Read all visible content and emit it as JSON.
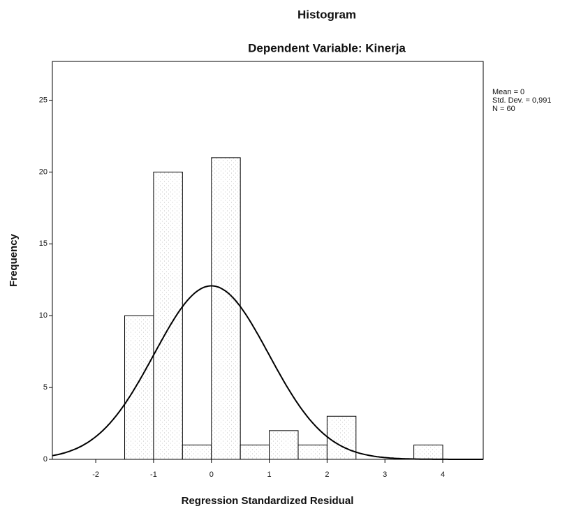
{
  "chart_data": {
    "type": "histogram",
    "title": "Histogram",
    "subtitle": "Dependent Variable: Kinerja",
    "x_label": "Regression Standardized Residual",
    "y_label": "Frequency",
    "bins": [
      -1.5,
      -1,
      -0.5,
      0,
      0.5,
      1,
      1.5,
      2,
      2.5,
      3,
      3.5,
      4
    ],
    "values": [
      10,
      20,
      1,
      21,
      1,
      2,
      1,
      3,
      0,
      0,
      1
    ],
    "color": "#ffffff",
    "stats": [
      {
        "value": 0,
        "label": "Mean = 0"
      },
      {
        "value": 0.991,
        "label": "Std. Dev. = 0,991"
      },
      {
        "value": 60,
        "label": "N = 60"
      }
    ],
    "xlim": [
      -2.75,
      4.7
    ],
    "ylim": [
      0,
      27.7
    ],
    "xticks": [
      -2,
      -1,
      0,
      1,
      2,
      3,
      4
    ],
    "yticks": [
      0,
      5,
      10,
      15,
      20,
      25
    ],
    "grid": false
  }
}
